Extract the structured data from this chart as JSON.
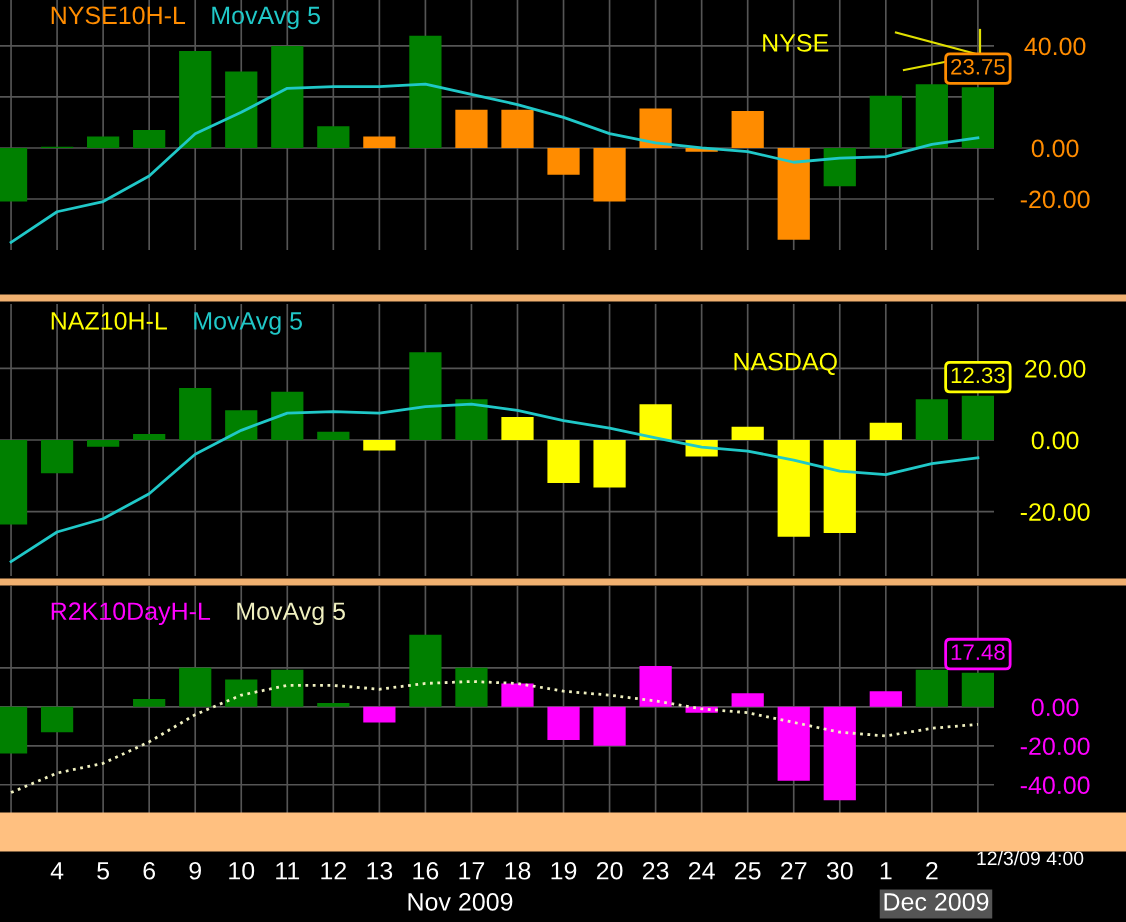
{
  "chart_data": [
    {
      "type": "bar",
      "categories": [
        null,
        "4",
        "5",
        "6",
        "9",
        "10",
        "11",
        "12",
        "13",
        "16",
        "17",
        "18",
        "19",
        "20",
        "23",
        "24",
        "25",
        "27",
        "30",
        "1",
        "2",
        null
      ],
      "series": [
        {
          "name": "NYSE10H-L",
          "color": "#ff8c00",
          "colors": [
            "#008000",
            "#008000",
            "#008000",
            "#008000",
            "#008000",
            "#008000",
            "#008000",
            "#008000",
            "#ff8c00",
            "#008000",
            "#ff8c00",
            "#ff8c00",
            "#ff8c00",
            "#ff8c00",
            "#ff8c00",
            "#ff8c00",
            "#ff8c00",
            "#ff8c00",
            "#008000",
            "#008000",
            "#008000",
            "#008000"
          ],
          "values": [
            -21,
            0.5,
            4.5,
            7,
            38,
            30,
            40,
            8.5,
            4.5,
            44,
            15,
            15,
            -10.5,
            -21,
            15.5,
            -1.5,
            14.5,
            -36,
            -15,
            20.5,
            25,
            23.75
          ],
          "value_labels": [
            null,
            null,
            null,
            null,
            null,
            null,
            null,
            null,
            null,
            null,
            null,
            null,
            null,
            null,
            null,
            null,
            null,
            null,
            null,
            null,
            null,
            "23.75"
          ]
        },
        {
          "name": "MovAvg 5",
          "type": "line",
          "color": "#20c8c8",
          "line_style": "solid",
          "values": [
            -37,
            -25,
            -21,
            -11,
            5.6,
            14,
            23.4,
            24,
            24,
            25,
            21,
            17,
            12,
            5.6,
            2,
            0,
            -1.4,
            -5.6,
            -4,
            -3.4,
            1.4,
            4
          ]
        }
      ],
      "ylim": [
        -40,
        58
      ],
      "yticks": [
        {
          "value": -20,
          "label": "-20.00"
        },
        {
          "value": 0,
          "label": "0.00"
        },
        {
          "value": 20,
          "label": null
        },
        {
          "value": 40,
          "label": "40.00"
        }
      ],
      "grid": true,
      "tick_labels": "y",
      "annotations": [
        "NYSE"
      ]
    },
    {
      "type": "bar",
      "categories": [
        null,
        "4",
        "5",
        "6",
        "9",
        "10",
        "11",
        "12",
        "13",
        "16",
        "17",
        "18",
        "19",
        "20",
        "23",
        "24",
        "25",
        "27",
        "30",
        "1",
        "2",
        null
      ],
      "series": [
        {
          "name": "NAZ10H-L",
          "color": "#ffff00",
          "colors": [
            "#008000",
            "#008000",
            "#008000",
            "#008000",
            "#008000",
            "#008000",
            "#008000",
            "#008000",
            "#ffff00",
            "#008000",
            "#008000",
            "#ffff00",
            "#ffff00",
            "#ffff00",
            "#ffff00",
            "#ffff00",
            "#ffff00",
            "#ffff00",
            "#ffff00",
            "#ffff00",
            "#008000",
            "#008000"
          ],
          "values": [
            -23.6,
            -9.3,
            -1.9,
            1.7,
            14.5,
            8.3,
            13.5,
            2.3,
            -2.9,
            24.5,
            11.4,
            6.4,
            -12,
            -13.3,
            10,
            -4.6,
            3.7,
            -27,
            -26,
            4.8,
            11.4,
            12.33
          ],
          "value_labels": [
            null,
            null,
            null,
            null,
            null,
            null,
            null,
            null,
            null,
            null,
            null,
            null,
            null,
            null,
            null,
            null,
            null,
            null,
            null,
            null,
            null,
            "12.33"
          ]
        },
        {
          "name": "MovAvg 5",
          "type": "line",
          "color": "#20c8c8",
          "line_style": "solid",
          "values": [
            -34,
            -25.7,
            -22,
            -15,
            -4,
            2.7,
            7.5,
            7.9,
            7.5,
            9.3,
            10,
            8.3,
            5.4,
            3.3,
            0.6,
            -2,
            -3.1,
            -5.6,
            -8.7,
            -9.7,
            -6.6,
            -5
          ]
        }
      ],
      "ylim": [
        -38,
        38
      ],
      "yticks": [
        {
          "value": -20,
          "label": "-20.00"
        },
        {
          "value": 0,
          "label": "0.00"
        },
        {
          "value": 20,
          "label": "20.00"
        }
      ],
      "grid": true,
      "tick_labels": "y",
      "annotations": [
        "NASDAQ"
      ]
    },
    {
      "type": "bar",
      "categories": [
        null,
        "4",
        "5",
        "6",
        "9",
        "10",
        "11",
        "12",
        "13",
        "16",
        "17",
        "18",
        "19",
        "20",
        "23",
        "24",
        "25",
        "27",
        "30",
        "1",
        "2",
        null
      ],
      "series": [
        {
          "name": "R2K10DayH-L",
          "color": "#ff00ff",
          "colors": [
            "#008000",
            "#008000",
            "#008000",
            "#008000",
            "#008000",
            "#008000",
            "#008000",
            "#008000",
            "#ff00ff",
            "#008000",
            "#008000",
            "#ff00ff",
            "#ff00ff",
            "#ff00ff",
            "#ff00ff",
            "#ff00ff",
            "#ff00ff",
            "#ff00ff",
            "#ff00ff",
            "#ff00ff",
            "#008000",
            "#008000"
          ],
          "values": [
            -24,
            -13,
            0,
            4,
            20,
            14,
            19,
            2,
            -8,
            37,
            20,
            12,
            -17,
            -20,
            21,
            -3,
            7,
            -38,
            -48,
            8,
            19,
            17.48
          ],
          "value_labels": [
            null,
            null,
            null,
            null,
            null,
            null,
            null,
            null,
            null,
            null,
            null,
            null,
            null,
            null,
            null,
            null,
            null,
            null,
            null,
            null,
            null,
            "17.48"
          ]
        },
        {
          "name": "MovAvg 5",
          "type": "line",
          "color": "#f0f0c0",
          "line_style": "dotted",
          "values": [
            -44,
            -34,
            -29,
            -18,
            -4,
            6,
            11,
            11,
            9,
            12,
            13,
            12,
            8,
            6,
            3,
            -1,
            -3,
            -8,
            -13,
            -15,
            -11,
            -9
          ]
        }
      ],
      "ylim": [
        -55,
        62
      ],
      "yticks": [
        {
          "value": -40,
          "label": "-40.00"
        },
        {
          "value": -20,
          "label": "-20.00"
        },
        {
          "value": 0,
          "label": "0.00"
        },
        {
          "value": 20,
          "label": null
        }
      ],
      "grid": true,
      "annotations": [
        "Nov 2009",
        "Dec 2009",
        "12/3/09 4:00"
      ]
    }
  ]
}
